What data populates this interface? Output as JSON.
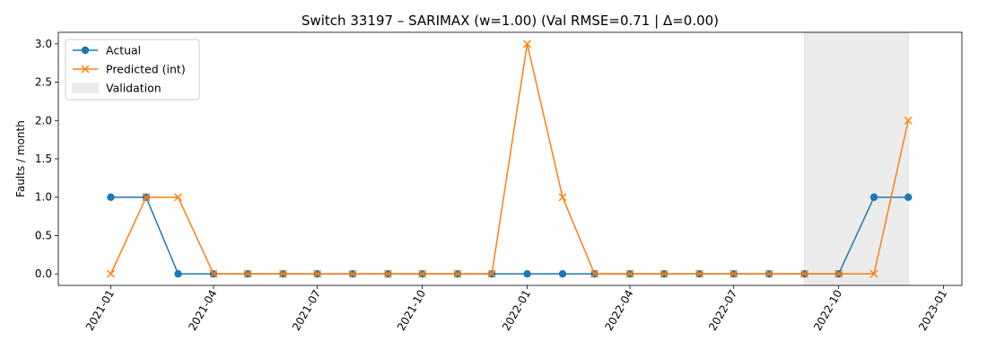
{
  "chart_data": {
    "type": "line",
    "title": "Switch 33197 – SARIMAX (w=1.00) (Val RMSE=0.71 | Δ=0.00)",
    "xlabel": "",
    "ylabel": "Faults / month",
    "ylim": [
      -0.15,
      3.15
    ],
    "yticks": [
      "0.0",
      "0.5",
      "1.0",
      "1.5",
      "2.0",
      "2.5",
      "3.0"
    ],
    "xticks": [
      "2021-01",
      "2021-04",
      "2021-07",
      "2021-10",
      "2022-01",
      "2022-04",
      "2022-07",
      "2022-10",
      "2023-01"
    ],
    "x": [
      "2021-01-01",
      "2021-02-01",
      "2021-03-01",
      "2021-04-01",
      "2021-05-01",
      "2021-06-01",
      "2021-07-01",
      "2021-08-01",
      "2021-09-01",
      "2021-10-01",
      "2021-11-01",
      "2021-12-01",
      "2022-01-01",
      "2022-02-01",
      "2022-03-01",
      "2022-04-01",
      "2022-05-01",
      "2022-06-01",
      "2022-07-01",
      "2022-08-01",
      "2022-09-01",
      "2022-10-01",
      "2022-11-01",
      "2022-12-01"
    ],
    "series": [
      {
        "name": "Actual",
        "marker": "circle",
        "color": "#1f77b4",
        "values": [
          1,
          1,
          0,
          0,
          0,
          0,
          0,
          0,
          0,
          0,
          0,
          0,
          0,
          0,
          0,
          0,
          0,
          0,
          0,
          0,
          0,
          0,
          1,
          1
        ]
      },
      {
        "name": "Predicted (int)",
        "marker": "x",
        "color": "#ff7f0e",
        "values": [
          0,
          1,
          1,
          0,
          0,
          0,
          0,
          0,
          0,
          0,
          0,
          0,
          3,
          1,
          0,
          0,
          0,
          0,
          0,
          0,
          0,
          0,
          0,
          2
        ]
      }
    ],
    "validation_span": {
      "name": "Validation",
      "start": "2022-09-01",
      "end": "2022-12-01",
      "color": "#ececec"
    },
    "grid": false,
    "legend_position": "top-left"
  }
}
